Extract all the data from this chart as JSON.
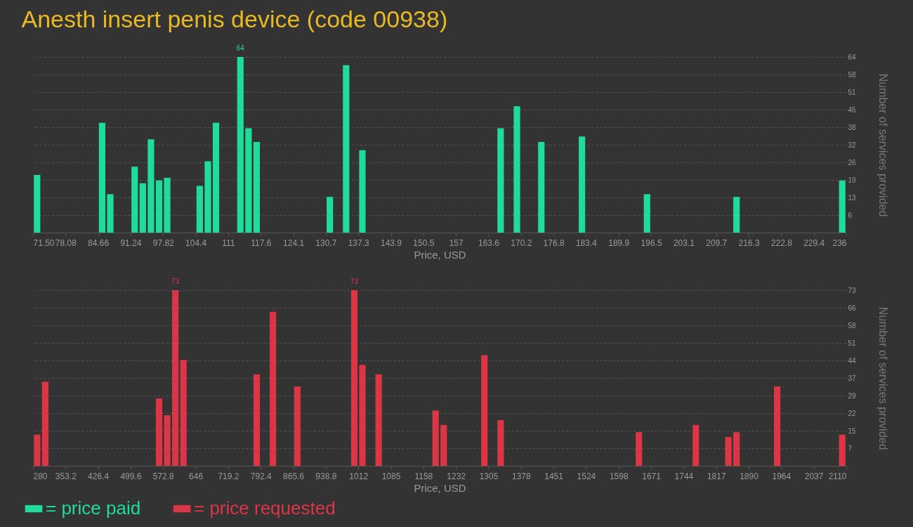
{
  "chart_data": [
    {
      "type": "histogram",
      "title": "Anesth insert penis device (code 00938)",
      "xlabel": "Price, USD",
      "ylabel": "Number of services provided",
      "bins": [
        71.5,
        73.145,
        74.79,
        76.435,
        78.08,
        79.725,
        81.37,
        83.015,
        84.66,
        86.305,
        87.95,
        89.595,
        91.24,
        92.885,
        94.53,
        96.175,
        97.82,
        99.465,
        101.11,
        102.755,
        104.4,
        106.045,
        107.69,
        109.335,
        110.98,
        112.625,
        114.27,
        115.915,
        117.56,
        119.205,
        120.85,
        122.495,
        124.14,
        125.785,
        127.43,
        129.075,
        130.72,
        132.365,
        134.01,
        135.655,
        137.3,
        138.945,
        140.59,
        142.235,
        143.88,
        145.525,
        147.17,
        148.815,
        150.46,
        152.105,
        153.75,
        155.395,
        157.04,
        158.685,
        160.33,
        161.975,
        163.62,
        165.265,
        166.91,
        168.555,
        170.2,
        171.845,
        173.49,
        175.135,
        176.78,
        178.425,
        180.07,
        181.715,
        183.36,
        185.005,
        186.65,
        188.295,
        189.94,
        191.585,
        193.23,
        194.875,
        196.52,
        198.165,
        199.81,
        201.455,
        203.1,
        204.745,
        206.39,
        208.035,
        209.68,
        211.325,
        212.97,
        214.615,
        216.26,
        217.905,
        219.55,
        221.195,
        222.84,
        224.485,
        226.13,
        227.775,
        229.42,
        231.065,
        232.71,
        234.355,
        236
      ],
      "series": [
        {
          "name": "= price paid",
          "color": "#20dc9a",
          "values": [
            21,
            0,
            0,
            0,
            0,
            0,
            0,
            0,
            40,
            14,
            0,
            0,
            24,
            18,
            34,
            19,
            20,
            0,
            0,
            0,
            17,
            26,
            40,
            0,
            0,
            64,
            38,
            33,
            0,
            0,
            0,
            0,
            0,
            0,
            0,
            0,
            13,
            0,
            61,
            0,
            30,
            0,
            0,
            0,
            0,
            0,
            0,
            0,
            0,
            0,
            0,
            0,
            0,
            0,
            0,
            0,
            0,
            38,
            0,
            46,
            0,
            0,
            33,
            0,
            0,
            0,
            0,
            35,
            0,
            0,
            0,
            0,
            0,
            0,
            0,
            14,
            0,
            0,
            0,
            0,
            0,
            0,
            0,
            0,
            0,
            0,
            13,
            0,
            0,
            0,
            0,
            0,
            0,
            0,
            0,
            0,
            0,
            0,
            0,
            19
          ],
          "value_labels": [
            null,
            null,
            null,
            null,
            null,
            null,
            null,
            null,
            null,
            null,
            null,
            null,
            null,
            null,
            null,
            null,
            null,
            null,
            null,
            null,
            null,
            null,
            null,
            null,
            null,
            "64",
            null,
            null,
            null,
            null,
            null,
            null,
            null,
            null,
            null,
            null,
            null,
            null,
            null,
            null,
            null,
            null,
            null,
            null,
            null,
            null,
            null,
            null,
            null,
            null,
            null,
            null,
            null,
            null,
            null,
            null,
            null,
            null,
            null,
            null,
            null,
            null,
            null,
            null,
            null,
            null,
            null,
            null,
            null,
            null,
            null,
            null,
            null,
            null,
            null,
            null,
            null,
            null,
            null,
            null,
            null,
            null,
            null,
            null,
            null,
            null,
            null,
            null,
            null,
            null,
            null,
            null,
            null,
            null,
            null,
            null,
            null,
            null,
            null,
            null
          ]
        }
      ],
      "xlim": [
        71.5,
        236
      ],
      "xticks": [
        {
          "value": 71.5,
          "label": "71.50"
        },
        78.08,
        84.66,
        91.24,
        97.82,
        104.4,
        {
          "value": 110.98,
          "label": "111"
        },
        {
          "value": 117.56,
          "label": "117.6"
        },
        {
          "value": 124.14,
          "label": "124.1"
        },
        {
          "value": 130.72,
          "label": "130.7"
        },
        137.3,
        {
          "value": 143.88,
          "label": "143.9"
        },
        {
          "value": 150.46,
          "label": "150.5"
        },
        {
          "value": 157.04,
          "label": "157"
        },
        {
          "value": 163.62,
          "label": "163.6"
        },
        170.2,
        {
          "value": 176.78,
          "label": "176.8"
        },
        {
          "value": 183.36,
          "label": "183.4"
        },
        {
          "value": 189.94,
          "label": "189.9"
        },
        {
          "value": 196.52,
          "label": "196.5"
        },
        203.1,
        {
          "value": 209.68,
          "label": "209.7"
        },
        {
          "value": 216.26,
          "label": "216.3"
        },
        {
          "value": 222.84,
          "label": "222.8"
        },
        {
          "value": 229.42,
          "label": "229.4"
        },
        236
      ],
      "ylim": [
        0,
        64
      ],
      "yticks": [
        {
          "value": 6.4,
          "label": "6"
        },
        {
          "value": 12.8,
          "label": "13"
        },
        {
          "value": 19.2,
          "label": "19"
        },
        {
          "value": 25.6,
          "label": "26"
        },
        32,
        {
          "value": 38.4,
          "label": "38"
        },
        {
          "value": 44.8,
          "label": "45"
        },
        {
          "value": 51.2,
          "label": "51"
        },
        {
          "value": 57.6,
          "label": "58"
        },
        64
      ],
      "grid": "y",
      "legend": "bottom left"
    },
    {
      "type": "histogram",
      "xlabel": "Price, USD",
      "ylabel": "Number of services provided",
      "bins": [
        280,
        298.3,
        316.6,
        334.9,
        353.2,
        371.5,
        389.8,
        408.1,
        426.4,
        444.7,
        463,
        481.3,
        499.6,
        517.9,
        536.2,
        554.5,
        572.8,
        591.1,
        609.4,
        627.7,
        646,
        664.3,
        682.6,
        700.9,
        719.2,
        737.5,
        755.8,
        774.1,
        792.4,
        810.7,
        829,
        847.3,
        865.6,
        883.9,
        902.2,
        920.5,
        938.8,
        957.1,
        975.4,
        993.7,
        1012,
        1030.3,
        1048.6,
        1066.9,
        1085.2,
        1103.5,
        1121.8,
        1140.1,
        1158.4,
        1176.7,
        1195,
        1213.3,
        1231.6,
        1249.9,
        1268.2,
        1286.5,
        1304.8,
        1323.1,
        1341.4,
        1359.7,
        1378,
        1396.3,
        1414.6,
        1432.9,
        1451.2,
        1469.5,
        1487.8,
        1506.1,
        1524.4,
        1542.7,
        1561,
        1579.3,
        1597.6,
        1615.9,
        1634.2,
        1652.5,
        1670.8,
        1689.1,
        1707.4,
        1725.7,
        1744,
        1762.3,
        1780.6,
        1798.9,
        1817.2,
        1835.5,
        1853.8,
        1872.1,
        1890.4,
        1908.7,
        1927,
        1945.3,
        1963.6,
        1981.9,
        2000.2,
        2018.5,
        2036.8,
        2055.1,
        2073.4,
        2091.7,
        2110
      ],
      "series": [
        {
          "name": "= price requested",
          "color": "#dc3545",
          "values": [
            13,
            35,
            0,
            0,
            0,
            0,
            0,
            0,
            0,
            0,
            0,
            0,
            0,
            0,
            0,
            28,
            21,
            73,
            44,
            0,
            0,
            0,
            0,
            0,
            0,
            0,
            0,
            38,
            0,
            64,
            0,
            0,
            33,
            0,
            0,
            0,
            0,
            0,
            0,
            73,
            42,
            0,
            38,
            0,
            0,
            0,
            0,
            0,
            0,
            23,
            17,
            0,
            0,
            0,
            0,
            46,
            0,
            19,
            0,
            0,
            0,
            0,
            0,
            0,
            0,
            0,
            0,
            0,
            0,
            0,
            0,
            0,
            0,
            0,
            14,
            0,
            0,
            0,
            0,
            0,
            0,
            17,
            0,
            0,
            0,
            12,
            14,
            0,
            0,
            0,
            0,
            33,
            0,
            0,
            0,
            0,
            0,
            0,
            0,
            13
          ],
          "value_labels": [
            null,
            null,
            null,
            null,
            null,
            null,
            null,
            null,
            null,
            null,
            null,
            null,
            null,
            null,
            null,
            null,
            null,
            "73",
            null,
            null,
            null,
            null,
            null,
            null,
            null,
            null,
            null,
            null,
            null,
            null,
            null,
            null,
            null,
            null,
            null,
            null,
            null,
            null,
            null,
            "73",
            null,
            null,
            null,
            null,
            null,
            null,
            null,
            null,
            null,
            null,
            null,
            null,
            null,
            null,
            null,
            null,
            null,
            null,
            null,
            null,
            null,
            null,
            null,
            null,
            null,
            null,
            null,
            null,
            null,
            null,
            null,
            null,
            null,
            null,
            null,
            null,
            null,
            null,
            null,
            null,
            null,
            null,
            null,
            null,
            null,
            null,
            null,
            null,
            null,
            null,
            null,
            null,
            null,
            null,
            null,
            null,
            null,
            null,
            null,
            null
          ]
        }
      ],
      "xlim": [
        280,
        2110
      ],
      "xticks": [
        280,
        353.2,
        426.4,
        499.6,
        572.8,
        646,
        719.2,
        792.4,
        865.6,
        938.8,
        1012,
        {
          "value": 1085.2,
          "label": "1085"
        },
        {
          "value": 1158.4,
          "label": "1158"
        },
        {
          "value": 1231.6,
          "label": "1232"
        },
        {
          "value": 1304.8,
          "label": "1305"
        },
        1378,
        {
          "value": 1451.2,
          "label": "1451"
        },
        {
          "value": 1524.4,
          "label": "1524"
        },
        {
          "value": 1597.6,
          "label": "1598"
        },
        {
          "value": 1670.8,
          "label": "1671"
        },
        1744,
        {
          "value": 1817.2,
          "label": "1817"
        },
        {
          "value": 1890.4,
          "label": "1890"
        },
        {
          "value": 1963.6,
          "label": "1964"
        },
        {
          "value": 2036.8,
          "label": "2037"
        },
        2110
      ],
      "ylim": [
        0,
        73
      ],
      "yticks": [
        {
          "value": 7.3,
          "label": "7"
        },
        {
          "value": 14.6,
          "label": "15"
        },
        {
          "value": 21.9,
          "label": "22"
        },
        {
          "value": 29.2,
          "label": "29"
        },
        {
          "value": 36.5,
          "label": "37"
        },
        {
          "value": 43.8,
          "label": "44"
        },
        {
          "value": 51.1,
          "label": "51"
        },
        {
          "value": 58.4,
          "label": "58"
        },
        {
          "value": 65.7,
          "label": "66"
        },
        73
      ],
      "grid": "y",
      "legend": "bottom left"
    }
  ]
}
